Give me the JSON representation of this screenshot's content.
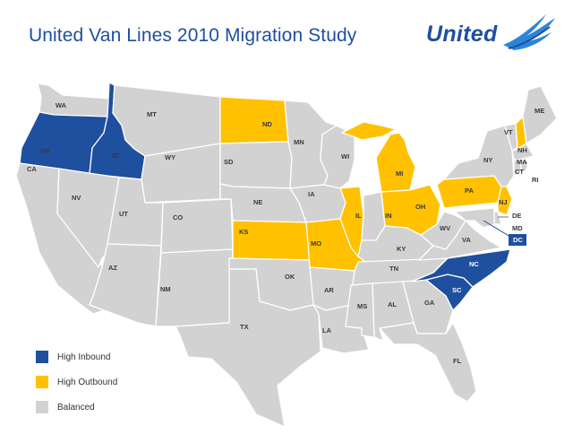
{
  "title": "United Van Lines 2010 Migration Study",
  "logo": {
    "text": "United",
    "icon": "eagle-wing-icon"
  },
  "colors": {
    "inbound": "#1f4f9f",
    "outbound": "#ffc100",
    "balanced": "#d2d2d2",
    "border": "#ffffff"
  },
  "legend": [
    {
      "label": "High Inbound",
      "category": "inbound"
    },
    {
      "label": "High Outbound",
      "category": "outbound"
    },
    {
      "label": "Balanced",
      "category": "balanced"
    }
  ],
  "states": [
    {
      "code": "WA",
      "category": "balanced"
    },
    {
      "code": "OR",
      "category": "inbound"
    },
    {
      "code": "CA",
      "category": "balanced"
    },
    {
      "code": "ID",
      "category": "inbound"
    },
    {
      "code": "NV",
      "category": "balanced"
    },
    {
      "code": "MT",
      "category": "balanced"
    },
    {
      "code": "WY",
      "category": "balanced"
    },
    {
      "code": "UT",
      "category": "balanced"
    },
    {
      "code": "AZ",
      "category": "balanced"
    },
    {
      "code": "CO",
      "category": "balanced"
    },
    {
      "code": "NM",
      "category": "balanced"
    },
    {
      "code": "ND",
      "category": "outbound"
    },
    {
      "code": "SD",
      "category": "balanced"
    },
    {
      "code": "NE",
      "category": "balanced"
    },
    {
      "code": "KS",
      "category": "outbound"
    },
    {
      "code": "OK",
      "category": "balanced"
    },
    {
      "code": "TX",
      "category": "balanced"
    },
    {
      "code": "MN",
      "category": "balanced"
    },
    {
      "code": "IA",
      "category": "balanced"
    },
    {
      "code": "MO",
      "category": "outbound"
    },
    {
      "code": "AR",
      "category": "balanced"
    },
    {
      "code": "LA",
      "category": "balanced"
    },
    {
      "code": "WI",
      "category": "balanced"
    },
    {
      "code": "IL",
      "category": "outbound"
    },
    {
      "code": "MI",
      "category": "outbound"
    },
    {
      "code": "IN",
      "category": "balanced"
    },
    {
      "code": "OH",
      "category": "outbound"
    },
    {
      "code": "KY",
      "category": "balanced"
    },
    {
      "code": "TN",
      "category": "balanced"
    },
    {
      "code": "MS",
      "category": "balanced"
    },
    {
      "code": "AL",
      "category": "balanced"
    },
    {
      "code": "GA",
      "category": "balanced"
    },
    {
      "code": "FL",
      "category": "balanced"
    },
    {
      "code": "SC",
      "category": "inbound"
    },
    {
      "code": "NC",
      "category": "inbound"
    },
    {
      "code": "VA",
      "category": "balanced"
    },
    {
      "code": "WV",
      "category": "balanced"
    },
    {
      "code": "PA",
      "category": "outbound"
    },
    {
      "code": "NY",
      "category": "balanced"
    },
    {
      "code": "NJ",
      "category": "outbound"
    },
    {
      "code": "DE",
      "category": "balanced"
    },
    {
      "code": "MD",
      "category": "balanced"
    },
    {
      "code": "DC",
      "category": "inbound"
    },
    {
      "code": "VT",
      "category": "balanced"
    },
    {
      "code": "NH",
      "category": "outbound"
    },
    {
      "code": "ME",
      "category": "balanced"
    },
    {
      "code": "MA",
      "category": "balanced"
    },
    {
      "code": "CT",
      "category": "balanced"
    },
    {
      "code": "RI",
      "category": "balanced"
    }
  ]
}
